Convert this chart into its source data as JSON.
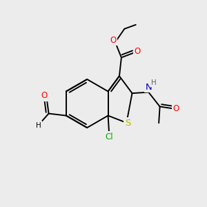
{
  "bg_color": "#ececec",
  "bond_color": "#000000",
  "bond_lw": 1.4,
  "atom_colors": {
    "S": "#b8b800",
    "O": "#ff0000",
    "N": "#0000cc",
    "Cl": "#00aa00",
    "C": "#000000",
    "H": "#666666"
  },
  "font_size": 8.5,
  "xlim": [
    0,
    10
  ],
  "ylim": [
    0,
    10
  ]
}
